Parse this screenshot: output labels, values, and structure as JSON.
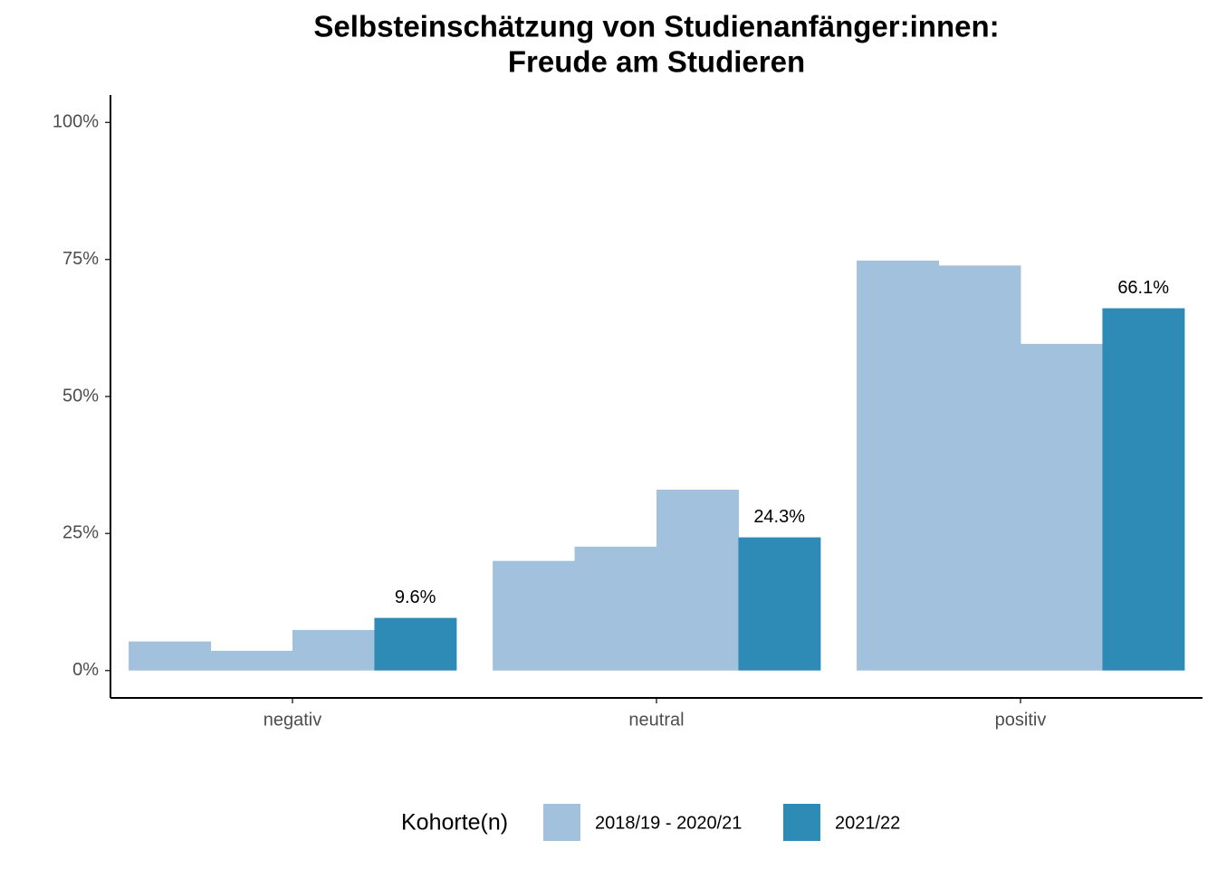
{
  "chart_data": {
    "type": "bar",
    "title": [
      "Selbsteinschätzung von Studienanfänger:innen:",
      "Freude am Studieren"
    ],
    "categories": [
      "negativ",
      "neutral",
      "positiv"
    ],
    "series": [
      {
        "name": "2018/19 - 2020/21",
        "color": "#a1c1dc",
        "values": [
          [
            5.3,
            3.6,
            7.4
          ],
          [
            20.0,
            22.6,
            33.0
          ],
          [
            74.8,
            73.9,
            59.6
          ]
        ]
      },
      {
        "name": "2021/22",
        "color": "#2e8bb6",
        "values": [
          9.6,
          24.3,
          66.1
        ],
        "value_labels": [
          "9.6%",
          "24.3%",
          "66.1%"
        ]
      }
    ],
    "ylim": [
      -5,
      105
    ],
    "yticks": [
      {
        "value": 0,
        "label": "0%"
      },
      {
        "value": 25,
        "label": "25%"
      },
      {
        "value": 50,
        "label": "50%"
      },
      {
        "value": 75,
        "label": "75%"
      },
      {
        "value": 100,
        "label": "100%"
      }
    ],
    "legend_title": "Kohorte(n)",
    "legend_position": "bottom"
  }
}
